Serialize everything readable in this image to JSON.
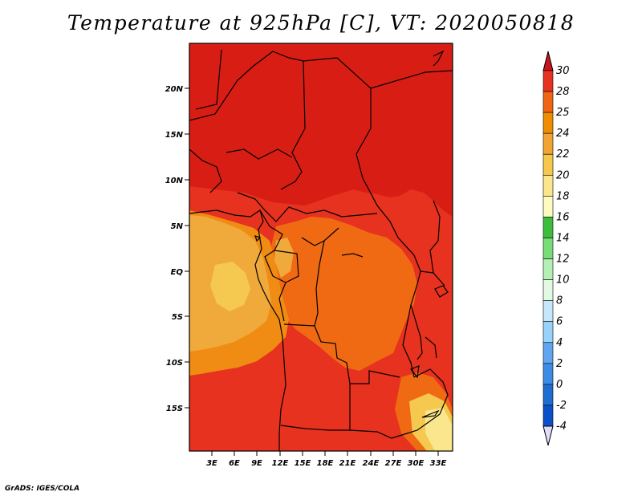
{
  "title": "Temperature at 925hPa [C], VT: 2020050818",
  "credit": "GrADS: IGES/COLA",
  "map": {
    "lon_labels": [
      "3E",
      "6E",
      "9E",
      "12E",
      "15E",
      "18E",
      "21E",
      "24E",
      "27E",
      "30E",
      "33E"
    ],
    "lat_labels": [
      "20N",
      "15N",
      "10N",
      "5N",
      "EQ",
      "5S",
      "10S",
      "15S"
    ]
  },
  "colorbar": {
    "levels": [
      "30",
      "28",
      "25",
      "24",
      "22",
      "20",
      "18",
      "16",
      "14",
      "12",
      "10",
      "8",
      "6",
      "4",
      "2",
      "0",
      "-2",
      "-4"
    ],
    "colors": {
      "above_30": "#c8141e",
      "28_30": "#e6321e",
      "25_28": "#f06414",
      "24_25": "#f08c00",
      "22_24": "#f0a532",
      "20_22": "#f5c84b",
      "18_20": "#fae68c",
      "16_18": "#fffabe",
      "14_16": "#3cbe3c",
      "12_14": "#78dc78",
      "10_12": "#b4f0b4",
      "8_10": "#e1fae1",
      "6_8": "#c8e6fa",
      "4_6": "#96d2fa",
      "2_4": "#5fa5f0",
      "0_2": "#3c8ce6",
      "m2_0": "#1e6ed2",
      "m4_m2": "#0a50c8",
      "below_m4": "#1e0f78",
      "below_m4_tip": "#e1dcfa"
    }
  }
}
